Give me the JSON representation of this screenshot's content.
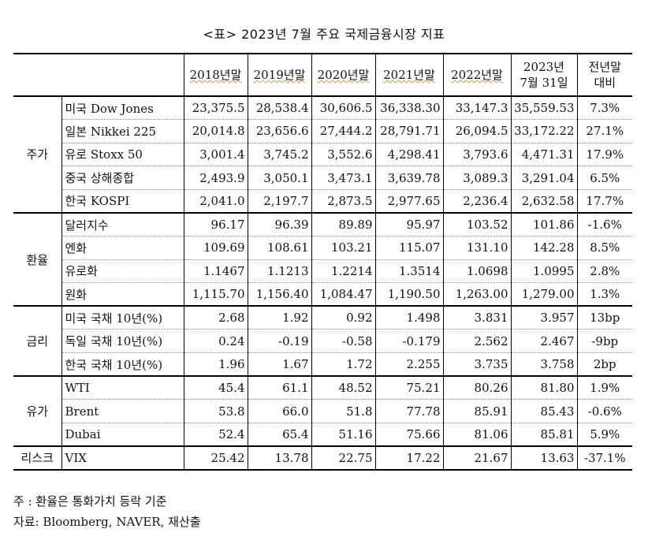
{
  "title": "<표> 2023년 7월 주요 국제금융시장 지표",
  "headers": {
    "c2018": "2018년말",
    "c2019": "2019년말",
    "c2020": "2020년말",
    "c2021": "2021년말",
    "c2022": "2022년말",
    "c2023_line1": "2023년",
    "c2023_line2": "7월 31일",
    "chg_line1": "전년말",
    "chg_line2": "대비"
  },
  "groups": {
    "stocks": "주가",
    "fx": "환율",
    "rates": "금리",
    "oil": "유가",
    "risk": "리스크"
  },
  "rows": [
    {
      "label": "미국 Dow Jones",
      "v": [
        "23,375.5",
        "28,538.4",
        "30,606.5",
        "36,338.30",
        "33,147.3",
        "35,559.53"
      ],
      "chg": "7.3%"
    },
    {
      "label": "일본 Nikkei 225",
      "v": [
        "20,014.8",
        "23,656.6",
        "27,444.2",
        "28,791.71",
        "26,094.5",
        "33,172.22"
      ],
      "chg": "27.1%"
    },
    {
      "label": "유로 Stoxx 50",
      "v": [
        "3,001.4",
        "3,745.2",
        "3,552.6",
        "4,298.41",
        "3,793.6",
        "4,471.31"
      ],
      "chg": "17.9%"
    },
    {
      "label": "중국 상해종합",
      "v": [
        "2,493.9",
        "3,050.1",
        "3,473.1",
        "3,639.78",
        "3,089.3",
        "3,291.04"
      ],
      "chg": "6.5%"
    },
    {
      "label": "한국 KOSPI",
      "v": [
        "2,041.0",
        "2,197.7",
        "2,873.5",
        "2,977.65",
        "2,236.4",
        "2,632.58"
      ],
      "chg": "17.7%"
    },
    {
      "label": "달러지수",
      "v": [
        "96.17",
        "96.39",
        "89.89",
        "95.97",
        "103.52",
        "101.86"
      ],
      "chg": "-1.6%"
    },
    {
      "label": "엔화",
      "v": [
        "109.69",
        "108.61",
        "103.21",
        "115.07",
        "131.10",
        "142.28"
      ],
      "chg": "8.5%"
    },
    {
      "label": "유로화",
      "v": [
        "1.1467",
        "1.1213",
        "1.2214",
        "1.3514",
        "1.0698",
        "1.0995"
      ],
      "chg": "2.8%"
    },
    {
      "label": "원화",
      "v": [
        "1,115.70",
        "1,156.40",
        "1,084.47",
        "1,190.50",
        "1,263.00",
        "1,279.00"
      ],
      "chg": "1.3%"
    },
    {
      "label": "미국 국채 10년(%)",
      "v": [
        "2.68",
        "1.92",
        "0.92",
        "1.498",
        "3.831",
        "3.957"
      ],
      "chg": "13bp"
    },
    {
      "label": "독일 국채 10년(%)",
      "v": [
        "0.24",
        "-0.19",
        "-0.58",
        "-0.179",
        "2.562",
        "2.467"
      ],
      "chg": "-9bp"
    },
    {
      "label": "한국 국채 10년(%)",
      "v": [
        "1.96",
        "1.67",
        "1.72",
        "2.255",
        "3.735",
        "3.758"
      ],
      "chg": "2bp"
    },
    {
      "label": "WTI",
      "v": [
        "45.4",
        "61.1",
        "48.52",
        "75.21",
        "80.26",
        "81.80"
      ],
      "chg": "1.9%"
    },
    {
      "label": "Brent",
      "v": [
        "53.8",
        "66.0",
        "51.8",
        "77.78",
        "85.91",
        "85.43"
      ],
      "chg": "-0.6%"
    },
    {
      "label": "Dubai",
      "v": [
        "52.4",
        "65.4",
        "51.16",
        "75.66",
        "81.06",
        "85.81"
      ],
      "chg": "5.9%"
    },
    {
      "label": "VIX",
      "v": [
        "25.42",
        "13.78",
        "22.75",
        "17.22",
        "21.67",
        "13.63"
      ],
      "chg": "-37.1%"
    }
  ],
  "notes": {
    "note1": "주 : 환율은 통화가치 등락 기준",
    "note2": "자료: Bloomberg, NAVER, 재산출"
  }
}
